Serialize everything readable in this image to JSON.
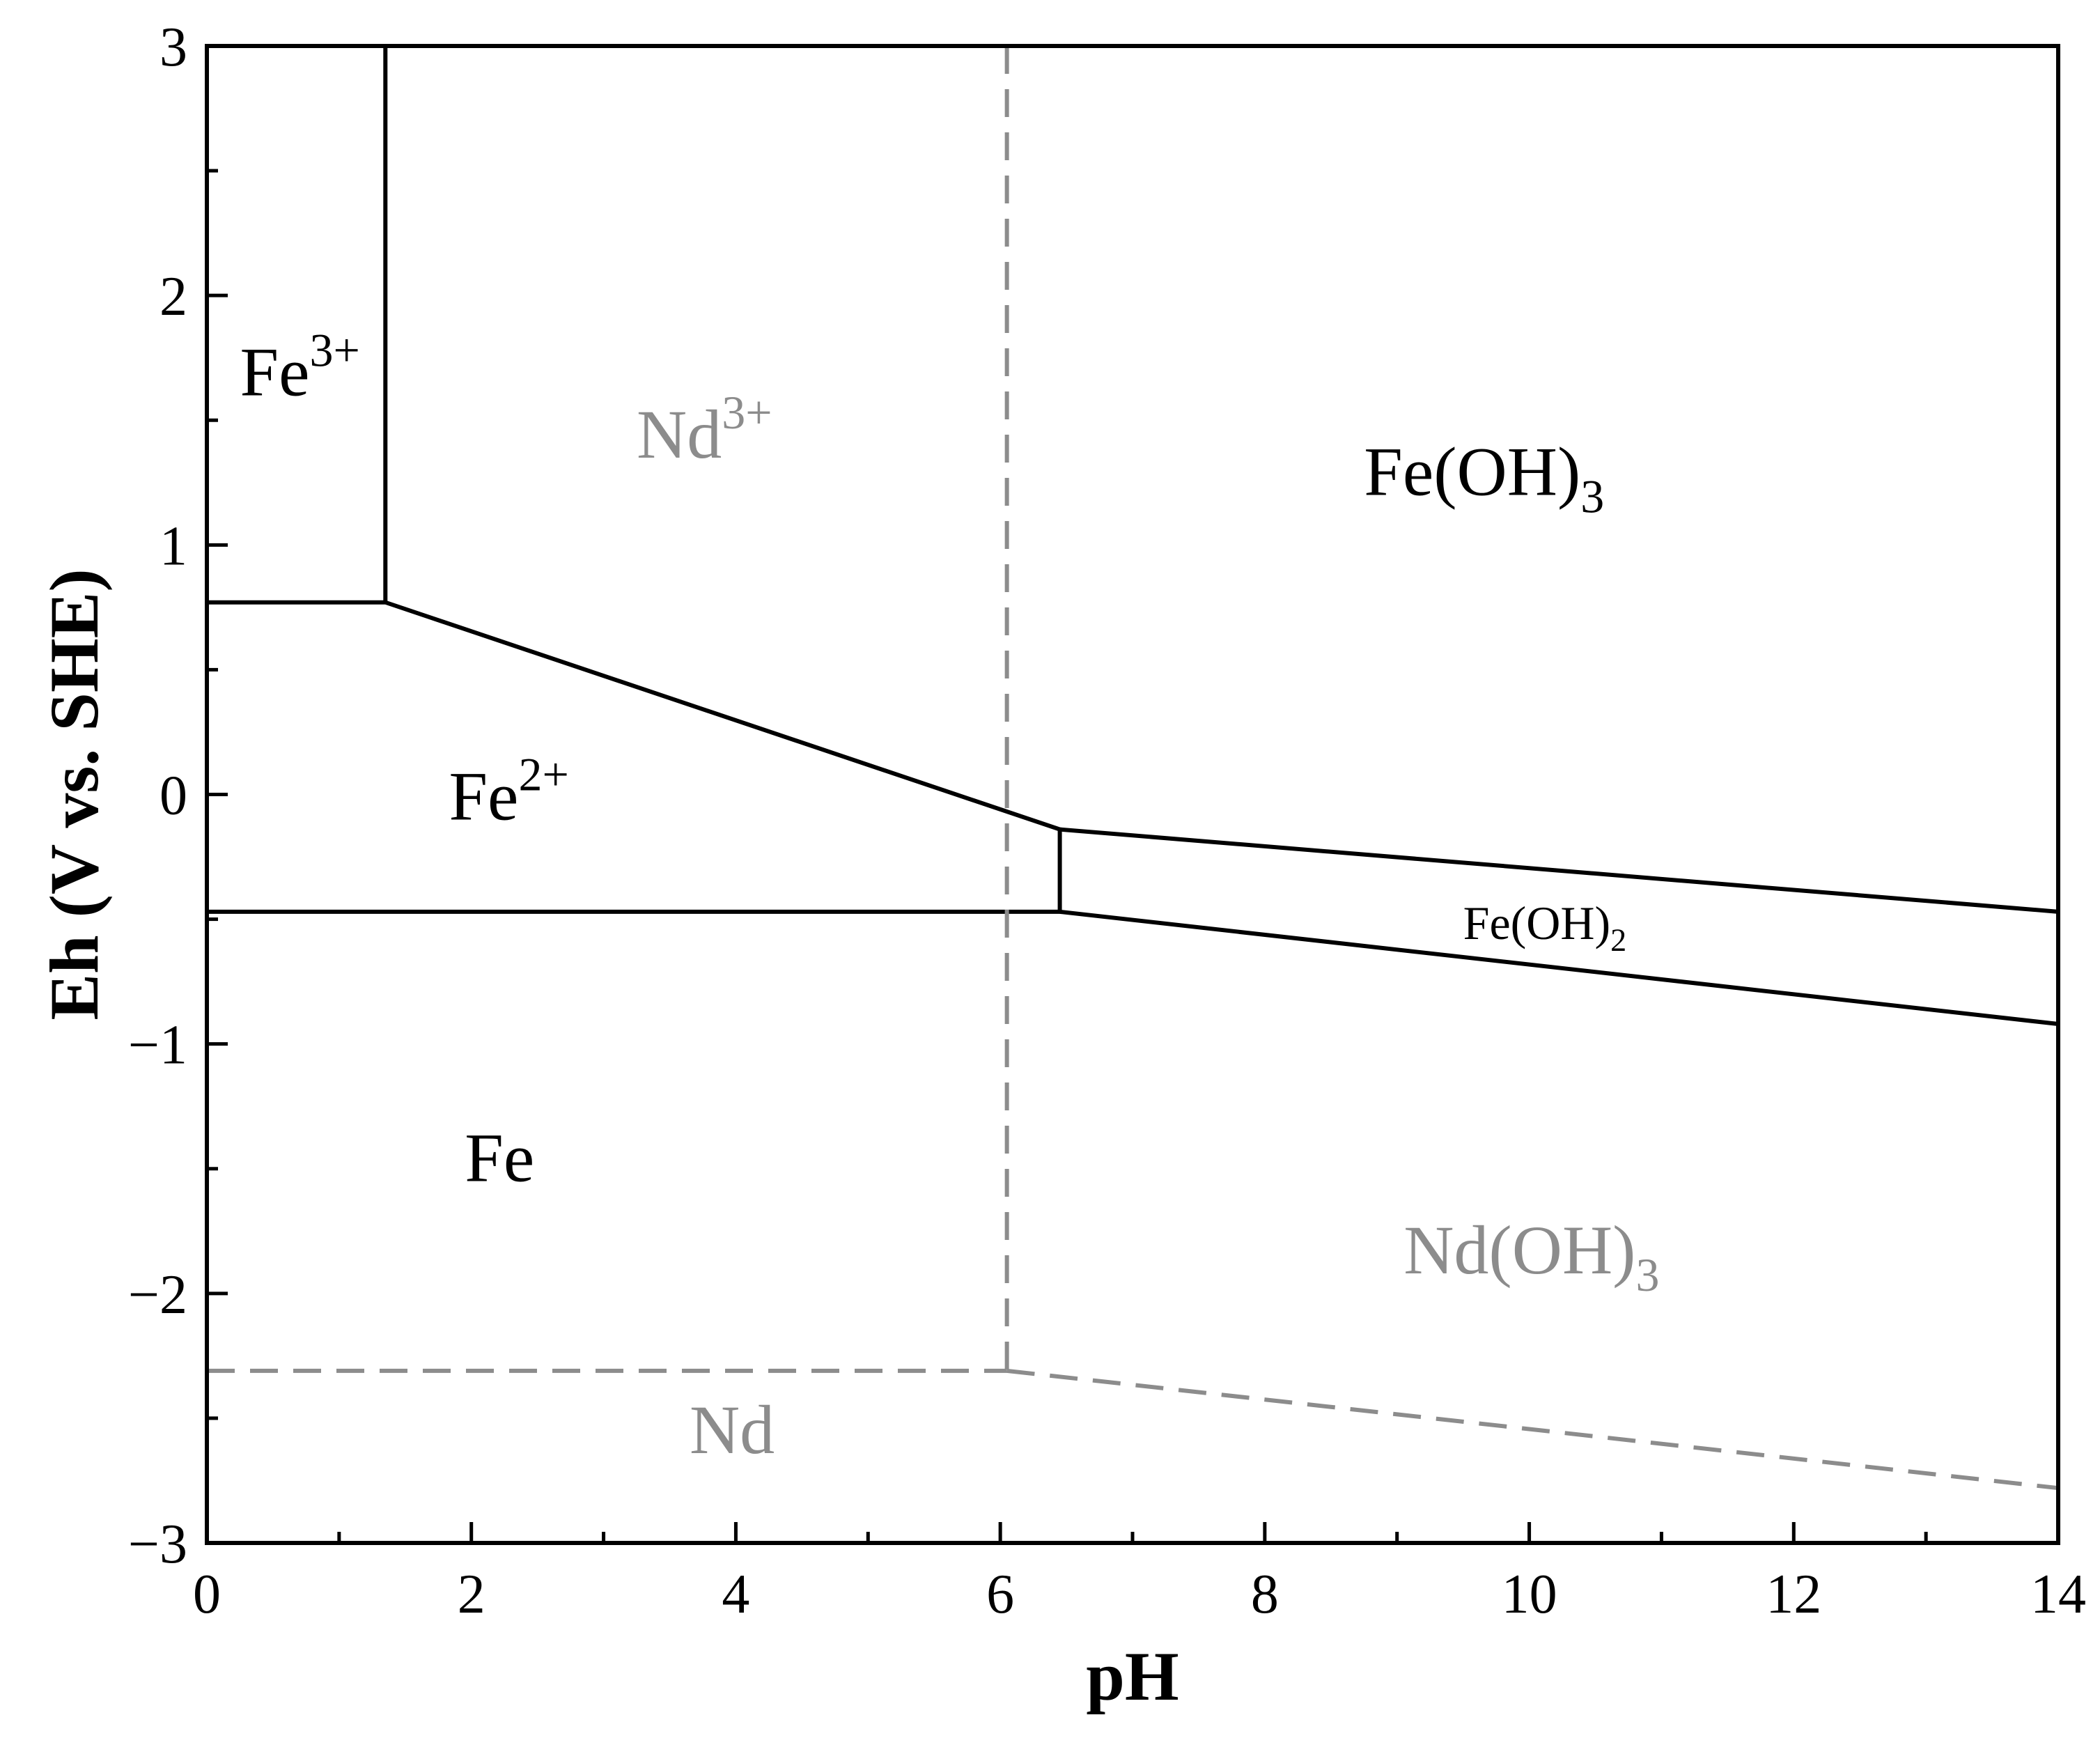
{
  "chart_data": {
    "type": "line",
    "title": "",
    "xlabel": "pH",
    "ylabel": "Eh (V vs. SHE)",
    "xlim": [
      0,
      14
    ],
    "ylim": [
      -3,
      3
    ],
    "x_ticks": [
      0,
      2,
      4,
      6,
      8,
      10,
      12,
      14
    ],
    "x_tick_labels": [
      "0",
      "2",
      "4",
      "6",
      "8",
      "10",
      "12",
      "14"
    ],
    "y_ticks": [
      -3,
      -2,
      -1,
      0,
      1,
      2,
      3
    ],
    "y_tick_labels": [
      "−3",
      "−2",
      "−1",
      "0",
      "1",
      "2",
      "3"
    ],
    "grid": false,
    "colors": {
      "fe_system": "#000000",
      "nd_system": "#8c8c8c"
    },
    "series": [
      {
        "style": "solid",
        "color_key": "fe_system",
        "x": [
          1.35,
          1.35
        ],
        "y": [
          3.0,
          0.77
        ]
      },
      {
        "style": "solid",
        "color_key": "fe_system",
        "x": [
          0,
          1.35,
          6.45
        ],
        "y": [
          0.77,
          0.77,
          -0.14
        ]
      },
      {
        "style": "solid",
        "color_key": "fe_system",
        "x": [
          6.45,
          14
        ],
        "y": [
          -0.14,
          -0.47
        ]
      },
      {
        "style": "solid",
        "color_key": "fe_system",
        "x": [
          6.45,
          6.45
        ],
        "y": [
          -0.14,
          -0.47
        ]
      },
      {
        "style": "solid",
        "color_key": "fe_system",
        "x": [
          0,
          6.45
        ],
        "y": [
          -0.47,
          -0.47
        ]
      },
      {
        "style": "solid",
        "color_key": "fe_system",
        "x": [
          6.45,
          14
        ],
        "y": [
          -0.47,
          -0.92
        ]
      },
      {
        "style": "dashed",
        "color_key": "nd_system",
        "x": [
          6.05,
          6.05
        ],
        "y": [
          3.0,
          -2.31
        ]
      },
      {
        "style": "dashed",
        "color_key": "nd_system",
        "x": [
          0,
          6.05
        ],
        "y": [
          -2.31,
          -2.31
        ]
      },
      {
        "style": "dashed",
        "color_key": "nd_system",
        "x": [
          6.05,
          14
        ],
        "y": [
          -2.31,
          -2.78
        ]
      }
    ],
    "annotations": [
      {
        "base": "Fe",
        "sup": "3+",
        "sub": "",
        "x": 0.25,
        "y": 1.6,
        "color_key": "fe_system",
        "size": "large"
      },
      {
        "base": "Nd",
        "sup": "3+",
        "sub": "",
        "x": 3.25,
        "y": 1.35,
        "color_key": "nd_system",
        "size": "large"
      },
      {
        "base": "Fe(OH)",
        "sup": "",
        "sub": "3",
        "x": 8.75,
        "y": 1.2,
        "color_key": "fe_system",
        "size": "large"
      },
      {
        "base": "Fe",
        "sup": "2+",
        "sub": "",
        "x": 1.83,
        "y": -0.1,
        "color_key": "fe_system",
        "size": "large"
      },
      {
        "base": "Fe(OH)",
        "sup": "",
        "sub": "2",
        "x": 9.5,
        "y": -0.58,
        "color_key": "fe_system",
        "size": "small"
      },
      {
        "base": "Fe",
        "sup": "",
        "sub": "",
        "x": 1.95,
        "y": -1.55,
        "color_key": "fe_system",
        "size": "large"
      },
      {
        "base": "Nd(OH)",
        "sup": "",
        "sub": "3",
        "x": 9.05,
        "y": -1.92,
        "color_key": "nd_system",
        "size": "large"
      },
      {
        "base": "Nd",
        "sup": "",
        "sub": "",
        "x": 3.65,
        "y": -2.64,
        "color_key": "nd_system",
        "size": "large"
      }
    ]
  }
}
